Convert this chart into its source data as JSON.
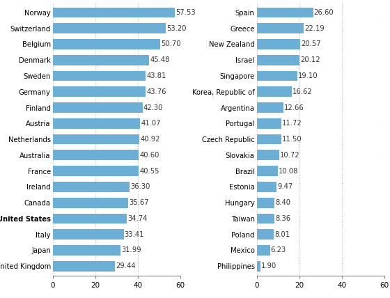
{
  "left_countries": [
    "Norway",
    "Switzerland",
    "Belgium",
    "Denmark",
    "Sweden",
    "Germany",
    "Finland",
    "Austria",
    "Netherlands",
    "Australia",
    "France",
    "Ireland",
    "Canada",
    "United States",
    "Italy",
    "Japan",
    "United Kingdom"
  ],
  "left_values": [
    57.53,
    53.2,
    50.7,
    45.48,
    43.81,
    43.76,
    42.3,
    41.07,
    40.92,
    40.6,
    40.55,
    36.3,
    35.67,
    34.74,
    33.41,
    31.99,
    29.44
  ],
  "left_bold": [
    "United States"
  ],
  "right_countries": [
    "Spain",
    "Greece",
    "New Zealand",
    "Israel",
    "Singapore",
    "Korea, Republic of",
    "Argentina",
    "Portugal",
    "Czech Republic",
    "Slovakia",
    "Brazil",
    "Estonia",
    "Hungary",
    "Taiwan",
    "Poland",
    "Mexico",
    "Philippines"
  ],
  "right_values": [
    26.6,
    22.19,
    20.57,
    20.12,
    19.1,
    16.62,
    12.66,
    11.72,
    11.5,
    10.72,
    10.08,
    9.47,
    8.4,
    8.36,
    8.01,
    6.23,
    1.9
  ],
  "bar_color": "#6baed6",
  "background_color": "#ffffff",
  "left_xlim": [
    0,
    60
  ],
  "right_xlim": [
    0,
    60
  ],
  "left_xticks": [
    0,
    20,
    40,
    60
  ],
  "right_xticks": [
    0,
    20,
    40,
    60
  ],
  "grid_color": "#bbbbbb",
  "label_fontsize": 7.2,
  "value_fontsize": 7.2,
  "tick_fontsize": 7.5
}
